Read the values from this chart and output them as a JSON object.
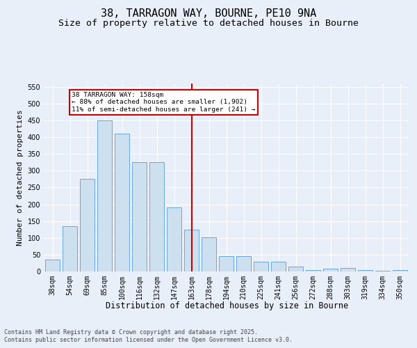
{
  "title": "38, TARRAGON WAY, BOURNE, PE10 9NA",
  "subtitle": "Size of property relative to detached houses in Bourne",
  "xlabel": "Distribution of detached houses by size in Bourne",
  "ylabel": "Number of detached properties",
  "categories": [
    "38sqm",
    "54sqm",
    "69sqm",
    "85sqm",
    "100sqm",
    "116sqm",
    "132sqm",
    "147sqm",
    "163sqm",
    "178sqm",
    "194sqm",
    "210sqm",
    "225sqm",
    "241sqm",
    "256sqm",
    "272sqm",
    "288sqm",
    "303sqm",
    "319sqm",
    "334sqm",
    "350sqm"
  ],
  "values": [
    35,
    135,
    275,
    450,
    410,
    325,
    325,
    190,
    125,
    102,
    46,
    46,
    30,
    30,
    15,
    5,
    8,
    10,
    4,
    3,
    4
  ],
  "bar_color": "#cce0f0",
  "bar_edge_color": "#5b9bd5",
  "vline_color": "#cc0000",
  "annotation_title": "38 TARRAGON WAY: 158sqm",
  "annotation_line1": "← 88% of detached houses are smaller (1,902)",
  "annotation_line2": "11% of semi-detached houses are larger (241) →",
  "annotation_box_color": "#cc0000",
  "ylim": [
    0,
    560
  ],
  "yticks": [
    0,
    50,
    100,
    150,
    200,
    250,
    300,
    350,
    400,
    450,
    500,
    550
  ],
  "bg_color": "#e8eff8",
  "plot_bg_color": "#e8eff8",
  "footer_line1": "Contains HM Land Registry data © Crown copyright and database right 2025.",
  "footer_line2": "Contains public sector information licensed under the Open Government Licence v3.0.",
  "title_fontsize": 11,
  "subtitle_fontsize": 9.5,
  "axis_label_fontsize": 8.5,
  "tick_fontsize": 7,
  "footer_fontsize": 6,
  "ylabel_fontsize": 8
}
